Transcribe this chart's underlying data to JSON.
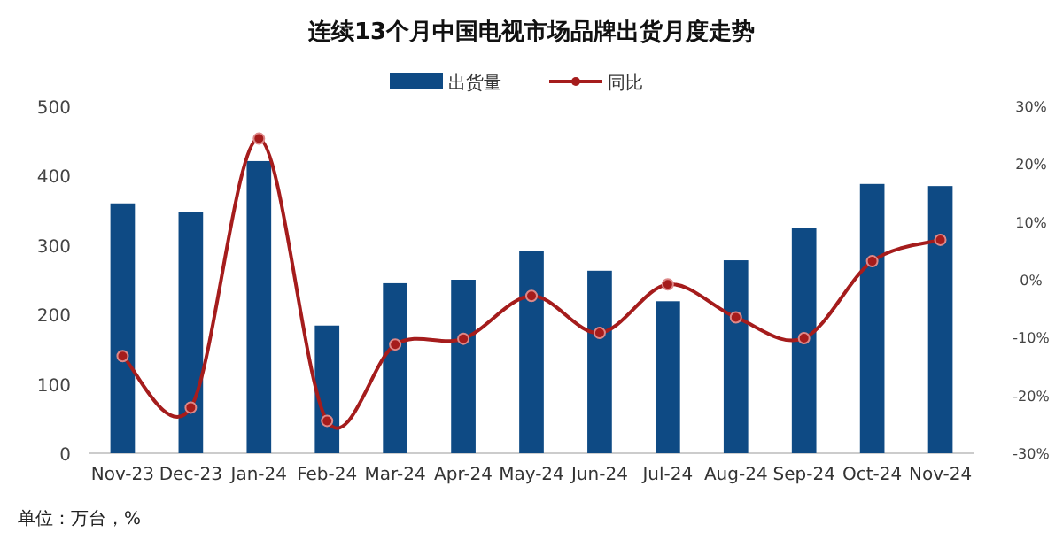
{
  "chart_data": {
    "type": "bar",
    "title": "连续13个月中国电视市场品牌出货月度走势",
    "categories": [
      "Nov-23",
      "Dec-23",
      "Jan-24",
      "Feb-24",
      "Mar-24",
      "Apr-24",
      "May-24",
      "Jun-24",
      "Jul-24",
      "Aug-24",
      "Sep-24",
      "Oct-24",
      "Nov-24"
    ],
    "series": [
      {
        "name": "出货量",
        "color": "#0e4a84",
        "values": [
          360,
          347,
          421,
          184,
          245,
          250,
          291,
          263,
          219,
          278,
          324,
          388,
          385
        ]
      },
      {
        "name": "同比",
        "type": "line",
        "axis": "y2",
        "color": "#a51c1c",
        "marker": "circle",
        "values": [
          -13.2,
          -22.1,
          24.4,
          -24.4,
          -11.2,
          -10.2,
          -2.8,
          -9.2,
          -0.8,
          -6.5,
          -10.1,
          3.2,
          6.9
        ]
      }
    ],
    "ylim": [
      0,
      500
    ],
    "yticks": [
      0,
      100,
      200,
      300,
      400,
      500
    ],
    "y2lim": [
      -30,
      30
    ],
    "y2ticks": [
      {
        "value": -30,
        "label": "-30%"
      },
      {
        "value": -20,
        "label": "-20%"
      },
      {
        "value": -10,
        "label": "-10%"
      },
      {
        "value": 0,
        "label": "0%"
      },
      {
        "value": 10,
        "label": "10%"
      },
      {
        "value": 20,
        "label": "20%"
      },
      {
        "value": 30,
        "label": "30%"
      }
    ],
    "legend": "top",
    "grid": false,
    "annotations": [
      "单位：万台，%"
    ]
  }
}
